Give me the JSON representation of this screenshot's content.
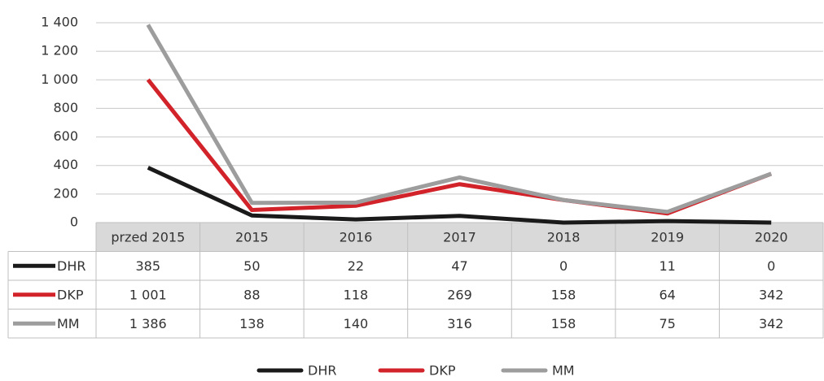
{
  "chart_data": {
    "type": "line",
    "categories": [
      "przed 2015",
      "2015",
      "2016",
      "2017",
      "2018",
      "2019",
      "2020"
    ],
    "series": [
      {
        "name": "DHR",
        "color": "#1a1a1a",
        "values": [
          385,
          50,
          22,
          47,
          0,
          11,
          0
        ]
      },
      {
        "name": "DKP",
        "color": "#d2232a",
        "values": [
          1001,
          88,
          118,
          269,
          158,
          64,
          342
        ],
        "value_labels": [
          "1 001",
          "88",
          "118",
          "269",
          "158",
          "64",
          "342"
        ]
      },
      {
        "name": "MM",
        "color": "#9d9d9d",
        "values": [
          1386,
          138,
          140,
          316,
          158,
          75,
          342
        ],
        "value_labels": [
          "1 386",
          "138",
          "140",
          "316",
          "158",
          "75",
          "342"
        ]
      }
    ],
    "ylim": [
      0,
      1400
    ],
    "yticks": [
      0,
      200,
      400,
      600,
      800,
      {
        "value": 1000,
        "label": "1 000"
      },
      {
        "value": 1200,
        "label": "1 200"
      },
      {
        "value": 1400,
        "label": "1 400"
      }
    ],
    "grid": true,
    "legend": "bottom",
    "data_table": true
  }
}
